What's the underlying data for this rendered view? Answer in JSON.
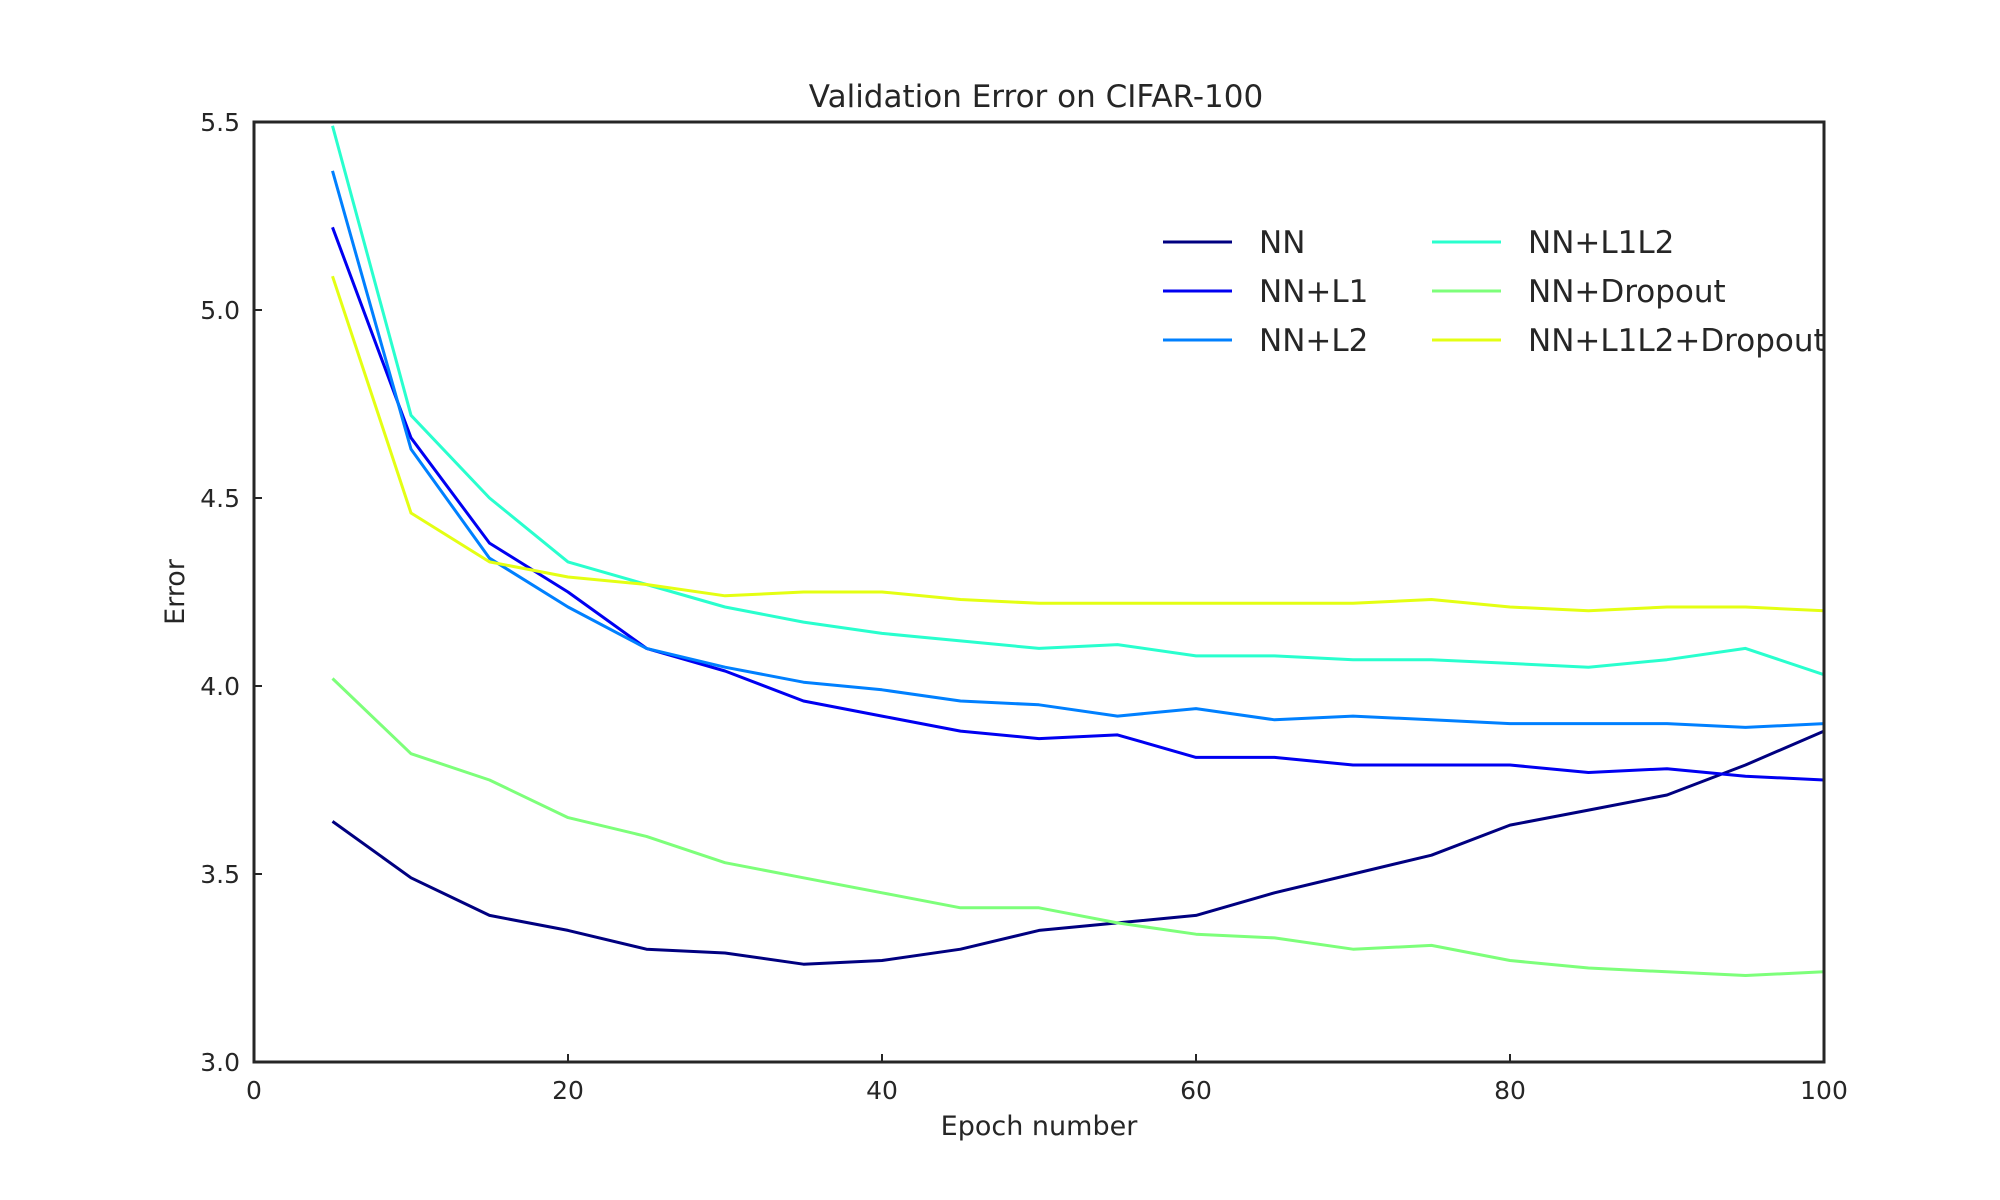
{
  "chart_data": {
    "type": "line",
    "title": "Validation Error on CIFAR-100",
    "xlabel": "Epoch number",
    "ylabel": "Error",
    "xlim": [
      0,
      100
    ],
    "ylim": [
      3.0,
      5.5
    ],
    "xticks": [
      "0",
      "20",
      "40",
      "60",
      "80",
      "100"
    ],
    "yticks": [
      "3.0",
      "3.5",
      "4.0",
      "4.5",
      "5.0",
      "5.5"
    ],
    "grid": false,
    "legend_position": "top-right",
    "x": [
      5,
      10,
      15,
      20,
      25,
      30,
      35,
      40,
      45,
      50,
      55,
      60,
      65,
      70,
      75,
      80,
      85,
      90,
      95,
      100
    ],
    "series": [
      {
        "name": "NN",
        "color": "#000080",
        "values": [
          3.64,
          3.49,
          3.39,
          3.35,
          3.3,
          3.29,
          3.26,
          3.27,
          3.3,
          3.35,
          3.37,
          3.39,
          3.45,
          3.5,
          3.55,
          3.63,
          3.67,
          3.71,
          3.79,
          3.88
        ]
      },
      {
        "name": "NN+L1",
        "color": "#0000f1",
        "values": [
          5.22,
          4.66,
          4.38,
          4.25,
          4.1,
          4.04,
          3.96,
          3.92,
          3.88,
          3.86,
          3.87,
          3.81,
          3.81,
          3.79,
          3.79,
          3.79,
          3.77,
          3.78,
          3.76,
          3.75
        ]
      },
      {
        "name": "NN+L2",
        "color": "#0080ff",
        "values": [
          5.37,
          4.63,
          4.34,
          4.21,
          4.1,
          4.05,
          4.01,
          3.99,
          3.96,
          3.95,
          3.92,
          3.94,
          3.91,
          3.92,
          3.91,
          3.9,
          3.9,
          3.9,
          3.89,
          3.9
        ]
      },
      {
        "name": "NN+L1L2",
        "color": "#29ffce",
        "values": [
          5.49,
          4.72,
          4.5,
          4.33,
          4.27,
          4.21,
          4.17,
          4.14,
          4.12,
          4.1,
          4.11,
          4.08,
          4.08,
          4.07,
          4.07,
          4.06,
          4.05,
          4.07,
          4.1,
          4.03
        ]
      },
      {
        "name": "NN+Dropout",
        "color": "#7dff7a",
        "values": [
          4.02,
          3.82,
          3.75,
          3.65,
          3.6,
          3.53,
          3.49,
          3.45,
          3.41,
          3.41,
          3.37,
          3.34,
          3.33,
          3.3,
          3.31,
          3.27,
          3.25,
          3.24,
          3.23,
          3.24
        ]
      },
      {
        "name": "NN+L1L2+Dropout",
        "color": "#e4ff13",
        "values": [
          5.09,
          4.46,
          4.33,
          4.29,
          4.27,
          4.24,
          4.25,
          4.25,
          4.23,
          4.22,
          4.22,
          4.22,
          4.22,
          4.22,
          4.23,
          4.21,
          4.2,
          4.21,
          4.21,
          4.2
        ]
      }
    ]
  }
}
